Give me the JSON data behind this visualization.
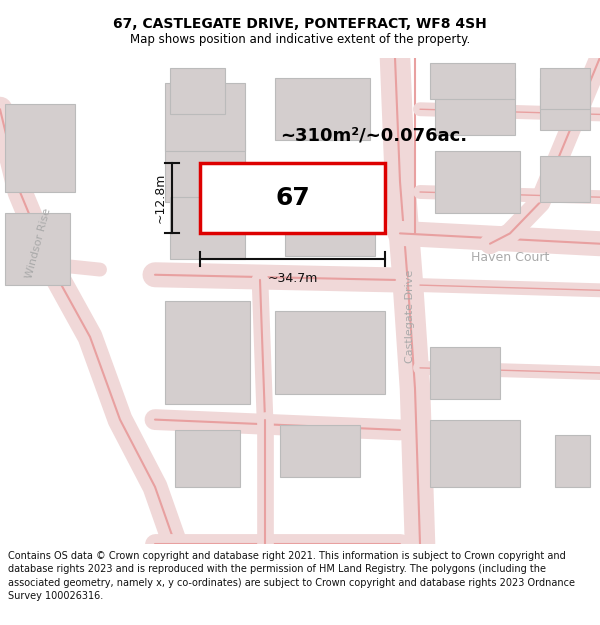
{
  "title": "67, CASTLEGATE DRIVE, PONTEFRACT, WF8 4SH",
  "subtitle": "Map shows position and indicative extent of the property.",
  "footer": "Contains OS data © Crown copyright and database right 2021. This information is subject to Crown copyright and database rights 2023 and is reproduced with the permission of HM Land Registry. The polygons (including the associated geometry, namely x, y co-ordinates) are subject to Crown copyright and database rights 2023 Ordnance Survey 100026316.",
  "area_label": "~310m²/~0.076ac.",
  "number_label": "67",
  "width_label": "~34.7m",
  "height_label": "~12.8m",
  "map_bg": "#f9f5f5",
  "plot_color": "#dd0000",
  "building_fill": "#d4cece",
  "building_edge": "#bbbbbb",
  "road_color": "#e8a0a0",
  "road_color2": "#c08080",
  "label_color": "#aaaaaa",
  "title_fontsize": 10,
  "subtitle_fontsize": 8.5,
  "footer_fontsize": 7.0
}
